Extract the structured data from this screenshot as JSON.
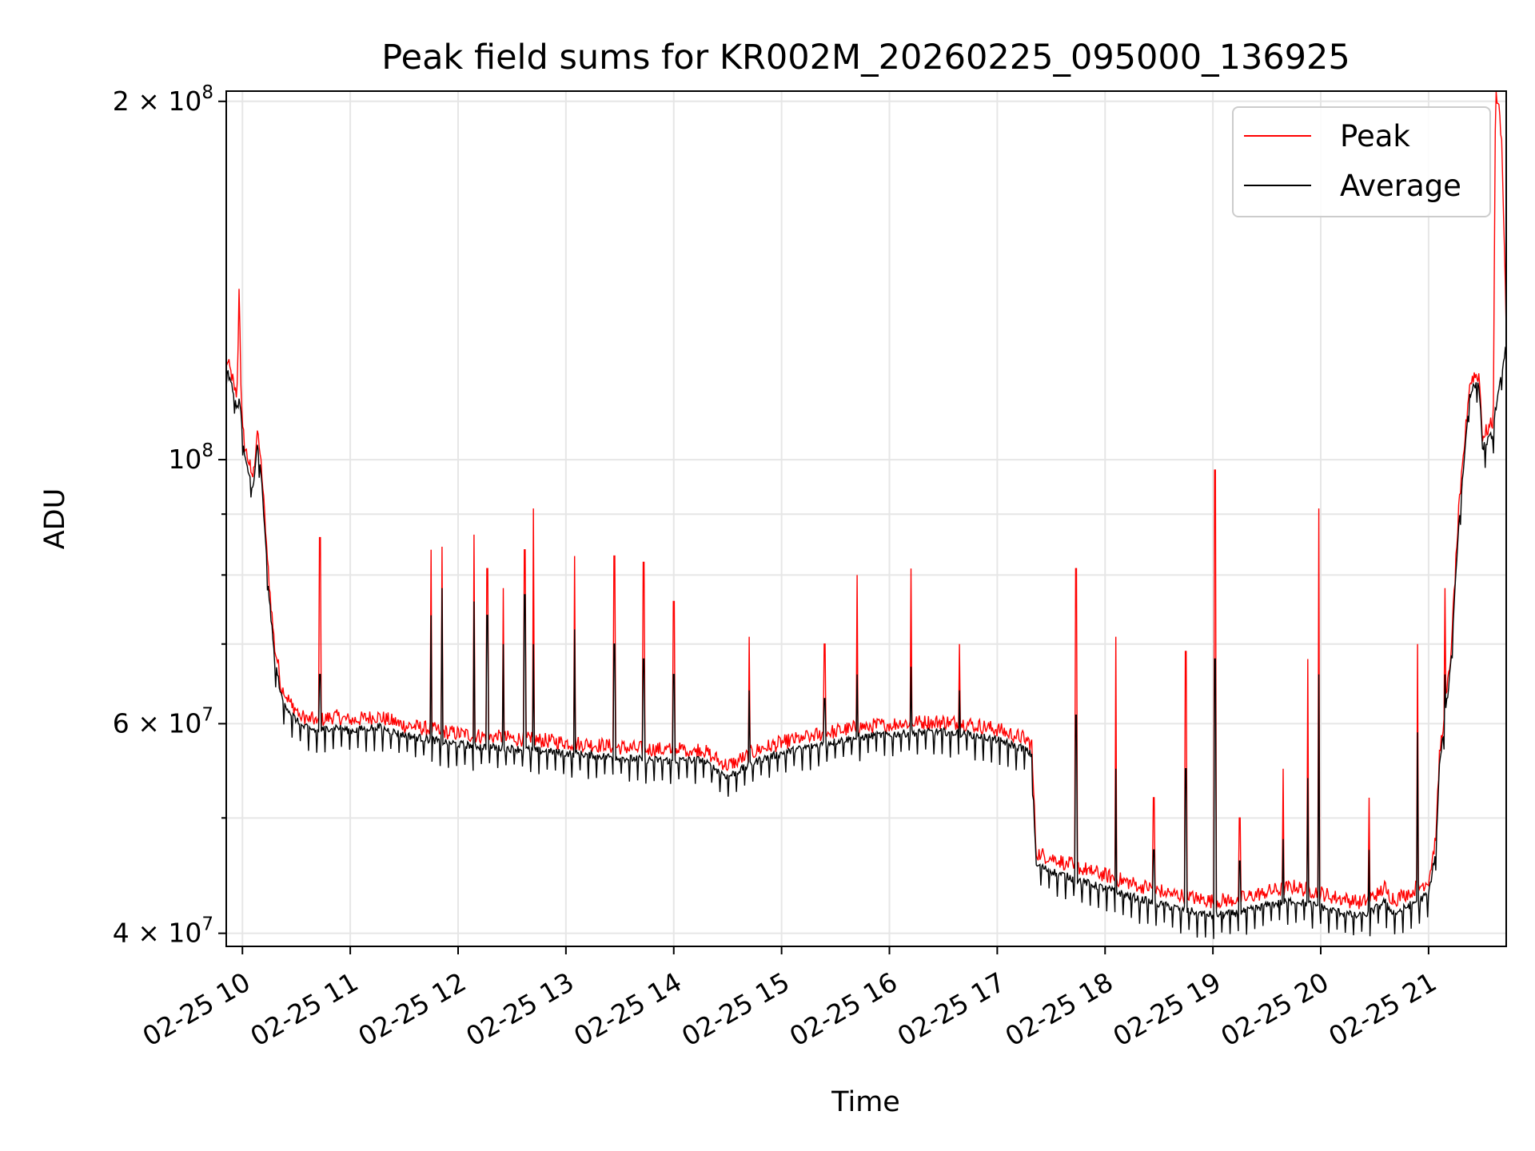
{
  "chart_data": {
    "type": "line",
    "title": "Peak field sums for KR002M_20260225_095000_136925",
    "xlabel": "Time",
    "ylabel": "ADU",
    "yscale": "log",
    "ylim": [
      39000000,
      204000000
    ],
    "xlim": [
      9.85,
      21.72
    ],
    "grid": true,
    "legend_position": "upper-right",
    "x_ticks": [
      {
        "value": 10,
        "label": "02-25 10"
      },
      {
        "value": 11,
        "label": "02-25 11"
      },
      {
        "value": 12,
        "label": "02-25 12"
      },
      {
        "value": 13,
        "label": "02-25 13"
      },
      {
        "value": 14,
        "label": "02-25 14"
      },
      {
        "value": 15,
        "label": "02-25 15"
      },
      {
        "value": 16,
        "label": "02-25 16"
      },
      {
        "value": 17,
        "label": "02-25 17"
      },
      {
        "value": 18,
        "label": "02-25 18"
      },
      {
        "value": 19,
        "label": "02-25 19"
      },
      {
        "value": 20,
        "label": "02-25 20"
      },
      {
        "value": 21,
        "label": "02-25 21"
      }
    ],
    "y_major_ticks": [
      {
        "value": 40000000,
        "base": "4 × 10",
        "exp": "7"
      },
      {
        "value": 60000000,
        "base": "6 × 10",
        "exp": "7"
      },
      {
        "value": 100000000,
        "base": "10",
        "exp": "8"
      },
      {
        "value": 200000000,
        "base": "2 × 10",
        "exp": "8"
      }
    ],
    "y_minor_ticks": [
      50000000,
      70000000,
      80000000,
      90000000
    ],
    "series": [
      {
        "name": "Peak",
        "color": "#ff0000",
        "x": [
          9.85,
          9.9,
          9.95,
          9.97,
          9.99,
          10.02,
          10.06,
          10.1,
          10.14,
          10.18,
          10.21,
          10.25,
          10.3,
          10.33,
          10.36,
          10.45,
          10.55,
          10.7,
          10.85,
          11.0,
          11.25,
          11.5,
          11.75,
          12.0,
          12.25,
          12.5,
          12.75,
          13.0,
          13.25,
          13.5,
          13.75,
          14.0,
          14.25,
          14.5,
          14.8,
          15.0,
          15.25,
          15.5,
          15.75,
          16.0,
          16.25,
          16.5,
          16.75,
          17.0,
          17.25,
          17.32,
          17.36,
          17.5,
          17.75,
          18.0,
          18.25,
          18.5,
          18.75,
          19.0,
          19.25,
          19.5,
          19.75,
          20.0,
          20.1,
          20.2,
          20.3,
          20.35,
          20.4,
          20.45,
          20.5,
          20.55,
          20.6,
          20.62,
          20.65,
          20.7,
          21.0,
          21.07,
          21.1,
          21.2,
          21.28,
          21.38,
          21.42,
          21.47,
          21.5,
          21.6,
          21.62,
          21.64,
          21.68,
          21.72
        ],
        "y": [
          121000000,
          117000000,
          112000000,
          140000000,
          110000000,
          102000000,
          99000000,
          96000000,
          106000000,
          97000000,
          88000000,
          78000000,
          69000000,
          67000000,
          64000000,
          62000000,
          60500000,
          60000000,
          60500000,
          60000000,
          60500000,
          59500000,
          59000000,
          58500000,
          58200000,
          58000000,
          57800000,
          57500000,
          57300000,
          57000000,
          56800000,
          56700000,
          56800000,
          55000000,
          56800000,
          57500000,
          58200000,
          58800000,
          59300000,
          59600000,
          59800000,
          59900000,
          59600000,
          59000000,
          58000000,
          57300000,
          46500000,
          46000000,
          45200000,
          44500000,
          43800000,
          43200000,
          42700000,
          42300000,
          42500000,
          43100000,
          43500000,
          43000000,
          42700000,
          42500000,
          42300000,
          42200000,
          42300000,
          42500000,
          42800000,
          43100000,
          43500000,
          43000000,
          42700000,
          42500000,
          44000000,
          48000000,
          56000000,
          67000000,
          90000000,
          115000000,
          117000000,
          117000000,
          104000000,
          107000000,
          200000000,
          200000000,
          185000000,
          128000000
        ]
      },
      {
        "name": "Average",
        "color": "#000000",
        "x": [
          9.85,
          9.9,
          9.95,
          9.97,
          9.99,
          10.02,
          10.06,
          10.1,
          10.14,
          10.18,
          10.21,
          10.25,
          10.3,
          10.33,
          10.36,
          10.45,
          10.55,
          10.7,
          10.85,
          11.0,
          11.25,
          11.5,
          11.75,
          12.0,
          12.25,
          12.5,
          12.75,
          13.0,
          13.25,
          13.5,
          13.75,
          14.0,
          14.25,
          14.5,
          14.8,
          15.0,
          15.25,
          15.5,
          15.75,
          16.0,
          16.25,
          16.5,
          16.75,
          17.0,
          17.25,
          17.32,
          17.36,
          17.5,
          17.75,
          18.0,
          18.25,
          18.5,
          18.75,
          19.0,
          19.25,
          19.5,
          19.75,
          20.0,
          20.1,
          20.2,
          20.3,
          20.35,
          20.4,
          20.45,
          20.5,
          20.55,
          20.6,
          20.62,
          20.65,
          20.7,
          21.0,
          21.07,
          21.1,
          21.2,
          21.28,
          21.38,
          21.42,
          21.47,
          21.5,
          21.6,
          21.62,
          21.64,
          21.68,
          21.72
        ],
        "y": [
          119000000,
          115000000,
          110000000,
          112000000,
          108000000,
          100000000,
          97000000,
          94000000,
          103000000,
          95000000,
          86000000,
          76000000,
          67500000,
          65500000,
          63000000,
          61000000,
          59500000,
          59000000,
          59500000,
          59000000,
          59500000,
          58500000,
          58000000,
          57500000,
          57200000,
          57000000,
          56800000,
          56500000,
          56300000,
          56000000,
          55800000,
          55700000,
          55800000,
          54000000,
          55800000,
          56500000,
          57200000,
          57800000,
          58300000,
          58600000,
          58800000,
          58900000,
          58600000,
          58000000,
          57000000,
          56300000,
          45500000,
          45000000,
          44200000,
          43500000,
          42800000,
          42200000,
          41700000,
          41300000,
          41500000,
          42100000,
          42500000,
          42000000,
          41700000,
          41500000,
          41300000,
          41200000,
          41300000,
          41500000,
          41800000,
          42100000,
          42500000,
          42000000,
          41700000,
          41500000,
          43000000,
          47000000,
          55000000,
          66000000,
          88000000,
          113000000,
          115000000,
          115000000,
          102000000,
          105000000,
          110000000,
          112000000,
          118000000,
          125000000
        ]
      }
    ],
    "spikes": [
      {
        "x": 10.72,
        "peak": 86000000,
        "avg": 66000000
      },
      {
        "x": 11.75,
        "peak": 84000000,
        "avg": 74000000
      },
      {
        "x": 11.85,
        "peak": 84500000,
        "avg": 78000000
      },
      {
        "x": 12.15,
        "peak": 86500000,
        "avg": 76000000
      },
      {
        "x": 12.27,
        "peak": 81000000,
        "avg": 74000000
      },
      {
        "x": 12.42,
        "peak": 78000000,
        "avg": 70000000
      },
      {
        "x": 12.62,
        "peak": 84000000,
        "avg": 77000000
      },
      {
        "x": 12.7,
        "peak": 91000000,
        "avg": 70000000
      },
      {
        "x": 13.08,
        "peak": 83000000,
        "avg": 72000000
      },
      {
        "x": 13.45,
        "peak": 83000000,
        "avg": 70000000
      },
      {
        "x": 13.72,
        "peak": 82000000,
        "avg": 68000000
      },
      {
        "x": 14.0,
        "peak": 76000000,
        "avg": 66000000
      },
      {
        "x": 14.7,
        "peak": 71000000,
        "avg": 64000000
      },
      {
        "x": 15.4,
        "peak": 70000000,
        "avg": 63000000
      },
      {
        "x": 15.7,
        "peak": 80000000,
        "avg": 66000000
      },
      {
        "x": 16.2,
        "peak": 81000000,
        "avg": 67000000
      },
      {
        "x": 16.65,
        "peak": 70000000,
        "avg": 64000000
      },
      {
        "x": 17.73,
        "peak": 81000000,
        "avg": 61000000
      },
      {
        "x": 18.1,
        "peak": 71000000,
        "avg": 55000000
      },
      {
        "x": 18.45,
        "peak": 52000000,
        "avg": 47000000
      },
      {
        "x": 18.75,
        "peak": 69000000,
        "avg": 55000000
      },
      {
        "x": 19.02,
        "peak": 98000000,
        "avg": 68000000
      },
      {
        "x": 19.25,
        "peak": 50000000,
        "avg": 46000000
      },
      {
        "x": 19.65,
        "peak": 55000000,
        "avg": 48000000
      },
      {
        "x": 19.88,
        "peak": 68000000,
        "avg": 54000000
      },
      {
        "x": 19.98,
        "peak": 91000000,
        "avg": 66000000
      },
      {
        "x": 20.45,
        "peak": 52000000,
        "avg": 47000000
      },
      {
        "x": 20.9,
        "peak": 70000000,
        "avg": 59000000
      },
      {
        "x": 21.15,
        "peak": 78000000,
        "avg": 66000000
      }
    ]
  }
}
